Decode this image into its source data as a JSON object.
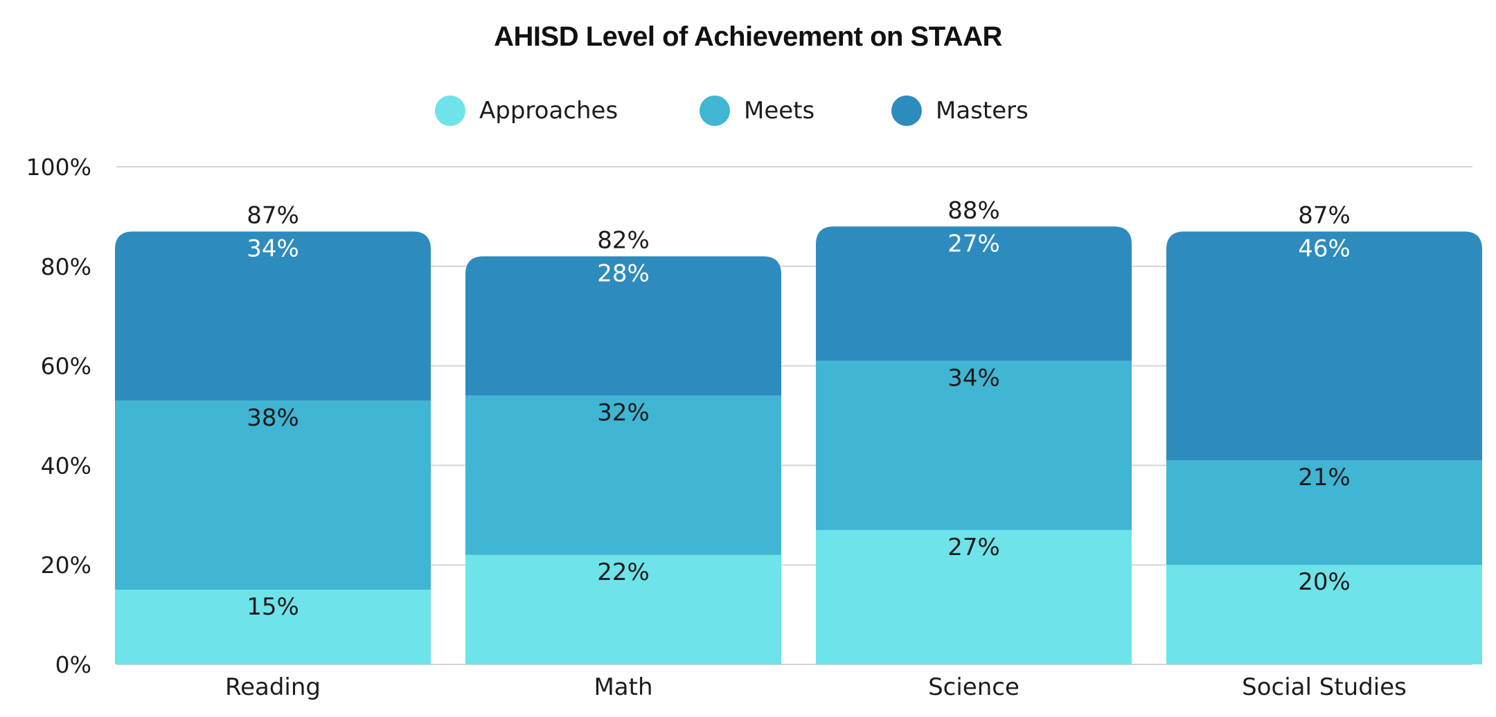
{
  "chart_data": {
    "type": "bar",
    "stacked": true,
    "title": "AHISD Level of Achievement on STAAR",
    "xlabel": "",
    "ylabel": "",
    "categories": [
      "Reading",
      "Math",
      "Science",
      "Social Studies"
    ],
    "series": [
      {
        "name": "Approaches",
        "values": [
          15,
          22,
          27,
          20
        ],
        "color": "#6ee3e9",
        "label_color": "#1c1c1c"
      },
      {
        "name": "Meets",
        "values": [
          38,
          32,
          34,
          21
        ],
        "color": "#40b5d4",
        "label_color": "#1c1c1c"
      },
      {
        "name": "Masters",
        "values": [
          34,
          28,
          27,
          46
        ],
        "color": "#2e8bbd",
        "label_color": "#ffffff"
      }
    ],
    "totals": [
      87,
      82,
      88,
      87
    ],
    "ylim": [
      0,
      100
    ],
    "yticks": [
      0,
      20,
      40,
      60,
      80,
      100
    ],
    "tick_suffix": "%",
    "value_suffix": "%",
    "grid": true,
    "legend_position": "top-center"
  }
}
